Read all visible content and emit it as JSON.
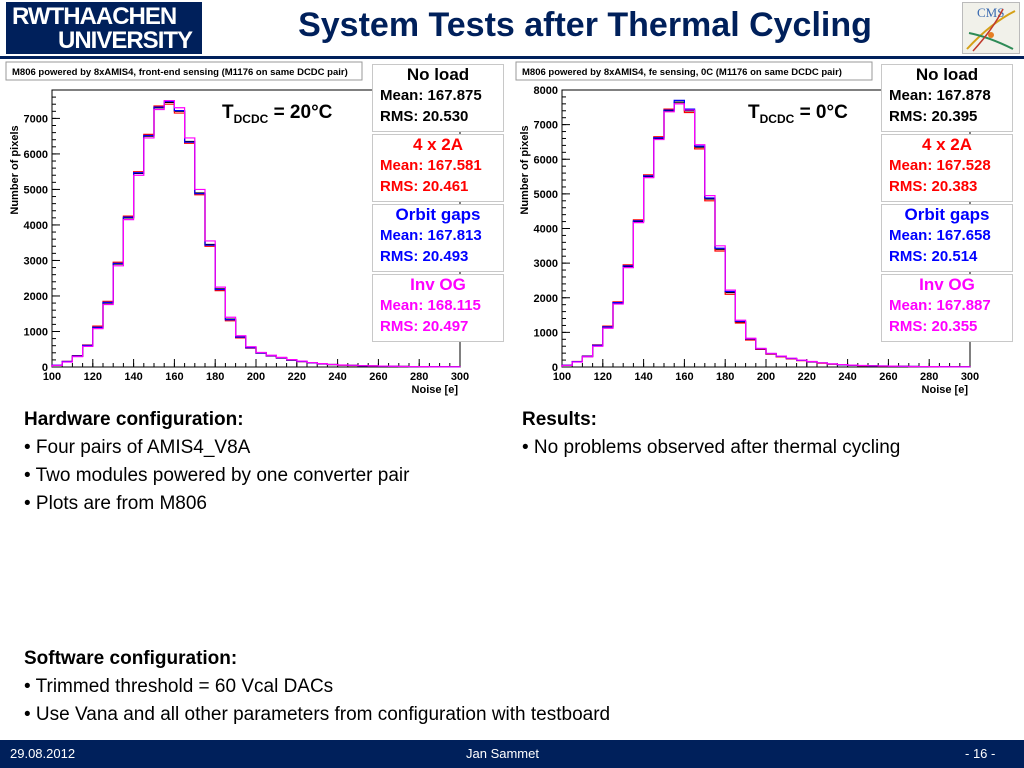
{
  "header": {
    "logo_line1": "RWTHAACHEN",
    "logo_line2": "UNIVERSITY",
    "title": "System Tests after Thermal Cycling",
    "cms_logo": "CMS"
  },
  "colors": {
    "navy": "#00205b",
    "no_load": "#000000",
    "four_by_2a": "#ff0000",
    "orbit_gaps": "#0000ff",
    "inv_og": "#ff00ff"
  },
  "plots": [
    {
      "title": "M806 powered by 8xAMIS4, front-end sensing (M1176 on same DCDC pair)",
      "temperature": {
        "T": "T",
        "sub": "DCDC",
        "value": "= 20°C"
      },
      "stats": [
        {
          "name": "No load",
          "mean": "Mean: 167.875",
          "rms": "RMS: 20.530"
        },
        {
          "name": "4 x 2A",
          "mean": "Mean: 167.581",
          "rms": "RMS: 20.461"
        },
        {
          "name": "Orbit gaps",
          "mean": "Mean: 167.813",
          "rms": "RMS: 20.493"
        },
        {
          "name": "Inv OG",
          "mean": "Mean: 168.115",
          "rms": "RMS: 20.497"
        }
      ]
    },
    {
      "title": "M806 powered by 8xAMIS4, fe sensing, 0C (M1176 on same DCDC pair)",
      "temperature": {
        "T": "T",
        "sub": "DCDC",
        "value": "= 0°C"
      },
      "stats": [
        {
          "name": "No load",
          "mean": "Mean: 167.878",
          "rms": "RMS: 20.395"
        },
        {
          "name": "4 x 2A",
          "mean": "Mean: 167.528",
          "rms": "RMS: 20.383"
        },
        {
          "name": "Orbit gaps",
          "mean": "Mean: 167.658",
          "rms": "RMS: 20.514"
        },
        {
          "name": "Inv OG",
          "mean": "Mean: 167.887",
          "rms": "RMS: 20.355"
        }
      ]
    }
  ],
  "chart_data": [
    {
      "type": "bar",
      "title": "M806 powered by 8xAMIS4, front-end sensing (M1176 on same DCDC pair)",
      "xlabel": "Noise [e]",
      "ylabel": "Number of pixels",
      "xlim": [
        100,
        300
      ],
      "ylim": [
        0,
        7800
      ],
      "xticks": [
        100,
        120,
        140,
        160,
        180,
        200,
        220,
        240,
        260,
        280,
        300
      ],
      "yticks": [
        0,
        1000,
        2000,
        3000,
        4000,
        5000,
        6000,
        7000
      ],
      "bin_edges": [
        100,
        105,
        110,
        115,
        120,
        125,
        130,
        135,
        140,
        145,
        150,
        155,
        160,
        165,
        170,
        175,
        180,
        185,
        190,
        195,
        200,
        205,
        210,
        215,
        220,
        225,
        230,
        235,
        240,
        245,
        250,
        255,
        260,
        265,
        270,
        275,
        280,
        285,
        290,
        295,
        300
      ],
      "series": [
        {
          "name": "No load",
          "values": [
            50,
            150,
            300,
            600,
            1100,
            1800,
            2900,
            4200,
            5450,
            6500,
            7300,
            7450,
            7200,
            6350,
            4900,
            3450,
            2200,
            1350,
            850,
            550,
            400,
            320,
            260,
            200,
            160,
            120,
            90,
            70,
            55,
            45,
            35,
            30,
            25,
            20,
            15,
            12,
            10,
            8,
            6,
            5
          ]
        },
        {
          "name": "4 x 2A",
          "values": [
            55,
            160,
            320,
            620,
            1150,
            1850,
            2950,
            4250,
            5500,
            6550,
            7350,
            7400,
            7150,
            6300,
            4850,
            3400,
            2150,
            1300,
            820,
            530,
            390,
            310,
            250,
            190,
            150,
            115,
            85,
            68,
            52,
            42,
            33,
            28,
            23,
            18,
            14,
            11,
            9,
            7,
            5,
            4
          ]
        },
        {
          "name": "Orbit gaps",
          "values": [
            52,
            155,
            310,
            610,
            1120,
            1820,
            2920,
            4220,
            5470,
            6520,
            7320,
            7480,
            7220,
            6330,
            4880,
            3430,
            2180,
            1330,
            840,
            540,
            395,
            315,
            255,
            195,
            155,
            118,
            88,
            69,
            54,
            44,
            34,
            29,
            24,
            19,
            14,
            11,
            9,
            7,
            6,
            4
          ]
        },
        {
          "name": "Inv OG",
          "values": [
            45,
            140,
            290,
            580,
            1080,
            1760,
            2850,
            4150,
            5400,
            6450,
            7250,
            7500,
            7300,
            6450,
            5000,
            3550,
            2250,
            1400,
            880,
            570,
            410,
            330,
            270,
            210,
            165,
            125,
            95,
            72,
            57,
            47,
            37,
            31,
            26,
            21,
            16,
            13,
            11,
            8,
            6,
            5
          ]
        }
      ]
    },
    {
      "type": "bar",
      "title": "M806 powered by 8xAMIS4, fe sensing, 0C (M1176 on same DCDC pair)",
      "xlabel": "Noise [e]",
      "ylabel": "Number of pixels",
      "xlim": [
        100,
        300
      ],
      "ylim": [
        0,
        8000
      ],
      "xticks": [
        100,
        120,
        140,
        160,
        180,
        200,
        220,
        240,
        260,
        280,
        300
      ],
      "yticks": [
        0,
        1000,
        2000,
        3000,
        4000,
        5000,
        6000,
        7000,
        8000
      ],
      "bin_edges": [
        100,
        105,
        110,
        115,
        120,
        125,
        130,
        135,
        140,
        145,
        150,
        155,
        160,
        165,
        170,
        175,
        180,
        185,
        190,
        195,
        200,
        205,
        210,
        215,
        220,
        225,
        230,
        235,
        240,
        245,
        250,
        255,
        260,
        265,
        270,
        275,
        280,
        285,
        290,
        295,
        300
      ],
      "series": [
        {
          "name": "No load",
          "values": [
            50,
            150,
            300,
            620,
            1150,
            1850,
            2900,
            4200,
            5500,
            6600,
            7400,
            7650,
            7400,
            6350,
            4850,
            3400,
            2150,
            1300,
            800,
            520,
            380,
            300,
            240,
            190,
            150,
            115,
            85,
            65,
            50,
            40,
            32,
            27,
            22,
            18,
            14,
            11,
            9,
            7,
            5,
            4
          ]
        },
        {
          "name": "4 x 2A",
          "values": [
            55,
            160,
            320,
            640,
            1180,
            1880,
            2950,
            4250,
            5550,
            6650,
            7450,
            7600,
            7350,
            6300,
            4800,
            3350,
            2100,
            1270,
            780,
            510,
            370,
            295,
            235,
            185,
            145,
            112,
            82,
            63,
            48,
            38,
            30,
            26,
            21,
            17,
            13,
            10,
            8,
            6,
            5,
            4
          ]
        },
        {
          "name": "Orbit gaps",
          "values": [
            52,
            155,
            310,
            630,
            1160,
            1860,
            2920,
            4220,
            5520,
            6620,
            7420,
            7700,
            7450,
            6380,
            4880,
            3430,
            2180,
            1320,
            810,
            525,
            385,
            305,
            245,
            192,
            152,
            117,
            86,
            66,
            51,
            41,
            33,
            28,
            23,
            18,
            14,
            11,
            9,
            7,
            5,
            4
          ]
        },
        {
          "name": "Inv OG",
          "values": [
            45,
            145,
            295,
            600,
            1120,
            1820,
            2870,
            4170,
            5470,
            6570,
            7370,
            7600,
            7420,
            6420,
            4950,
            3500,
            2220,
            1350,
            830,
            540,
            395,
            315,
            255,
            198,
            158,
            120,
            90,
            70,
            55,
            44,
            35,
            30,
            25,
            20,
            15,
            12,
            10,
            8,
            6,
            5
          ]
        }
      ]
    }
  ],
  "left_text": {
    "heading": "Hardware configuration:",
    "items": [
      "• Four pairs of AMIS4_V8A",
      "• Two modules powered by one converter pair",
      "• Plots are from M806"
    ]
  },
  "right_text": {
    "heading": "Results:",
    "items": [
      "• No problems observed after thermal cycling"
    ]
  },
  "software_text": {
    "heading": "Software configuration:",
    "items": [
      "• Trimmed threshold = 60 Vcal DACs",
      "• Use Vana and all other parameters from configuration with testboard"
    ]
  },
  "footer": {
    "date": "29.08.2012",
    "author": "Jan Sammet",
    "page": "- 16 -"
  }
}
